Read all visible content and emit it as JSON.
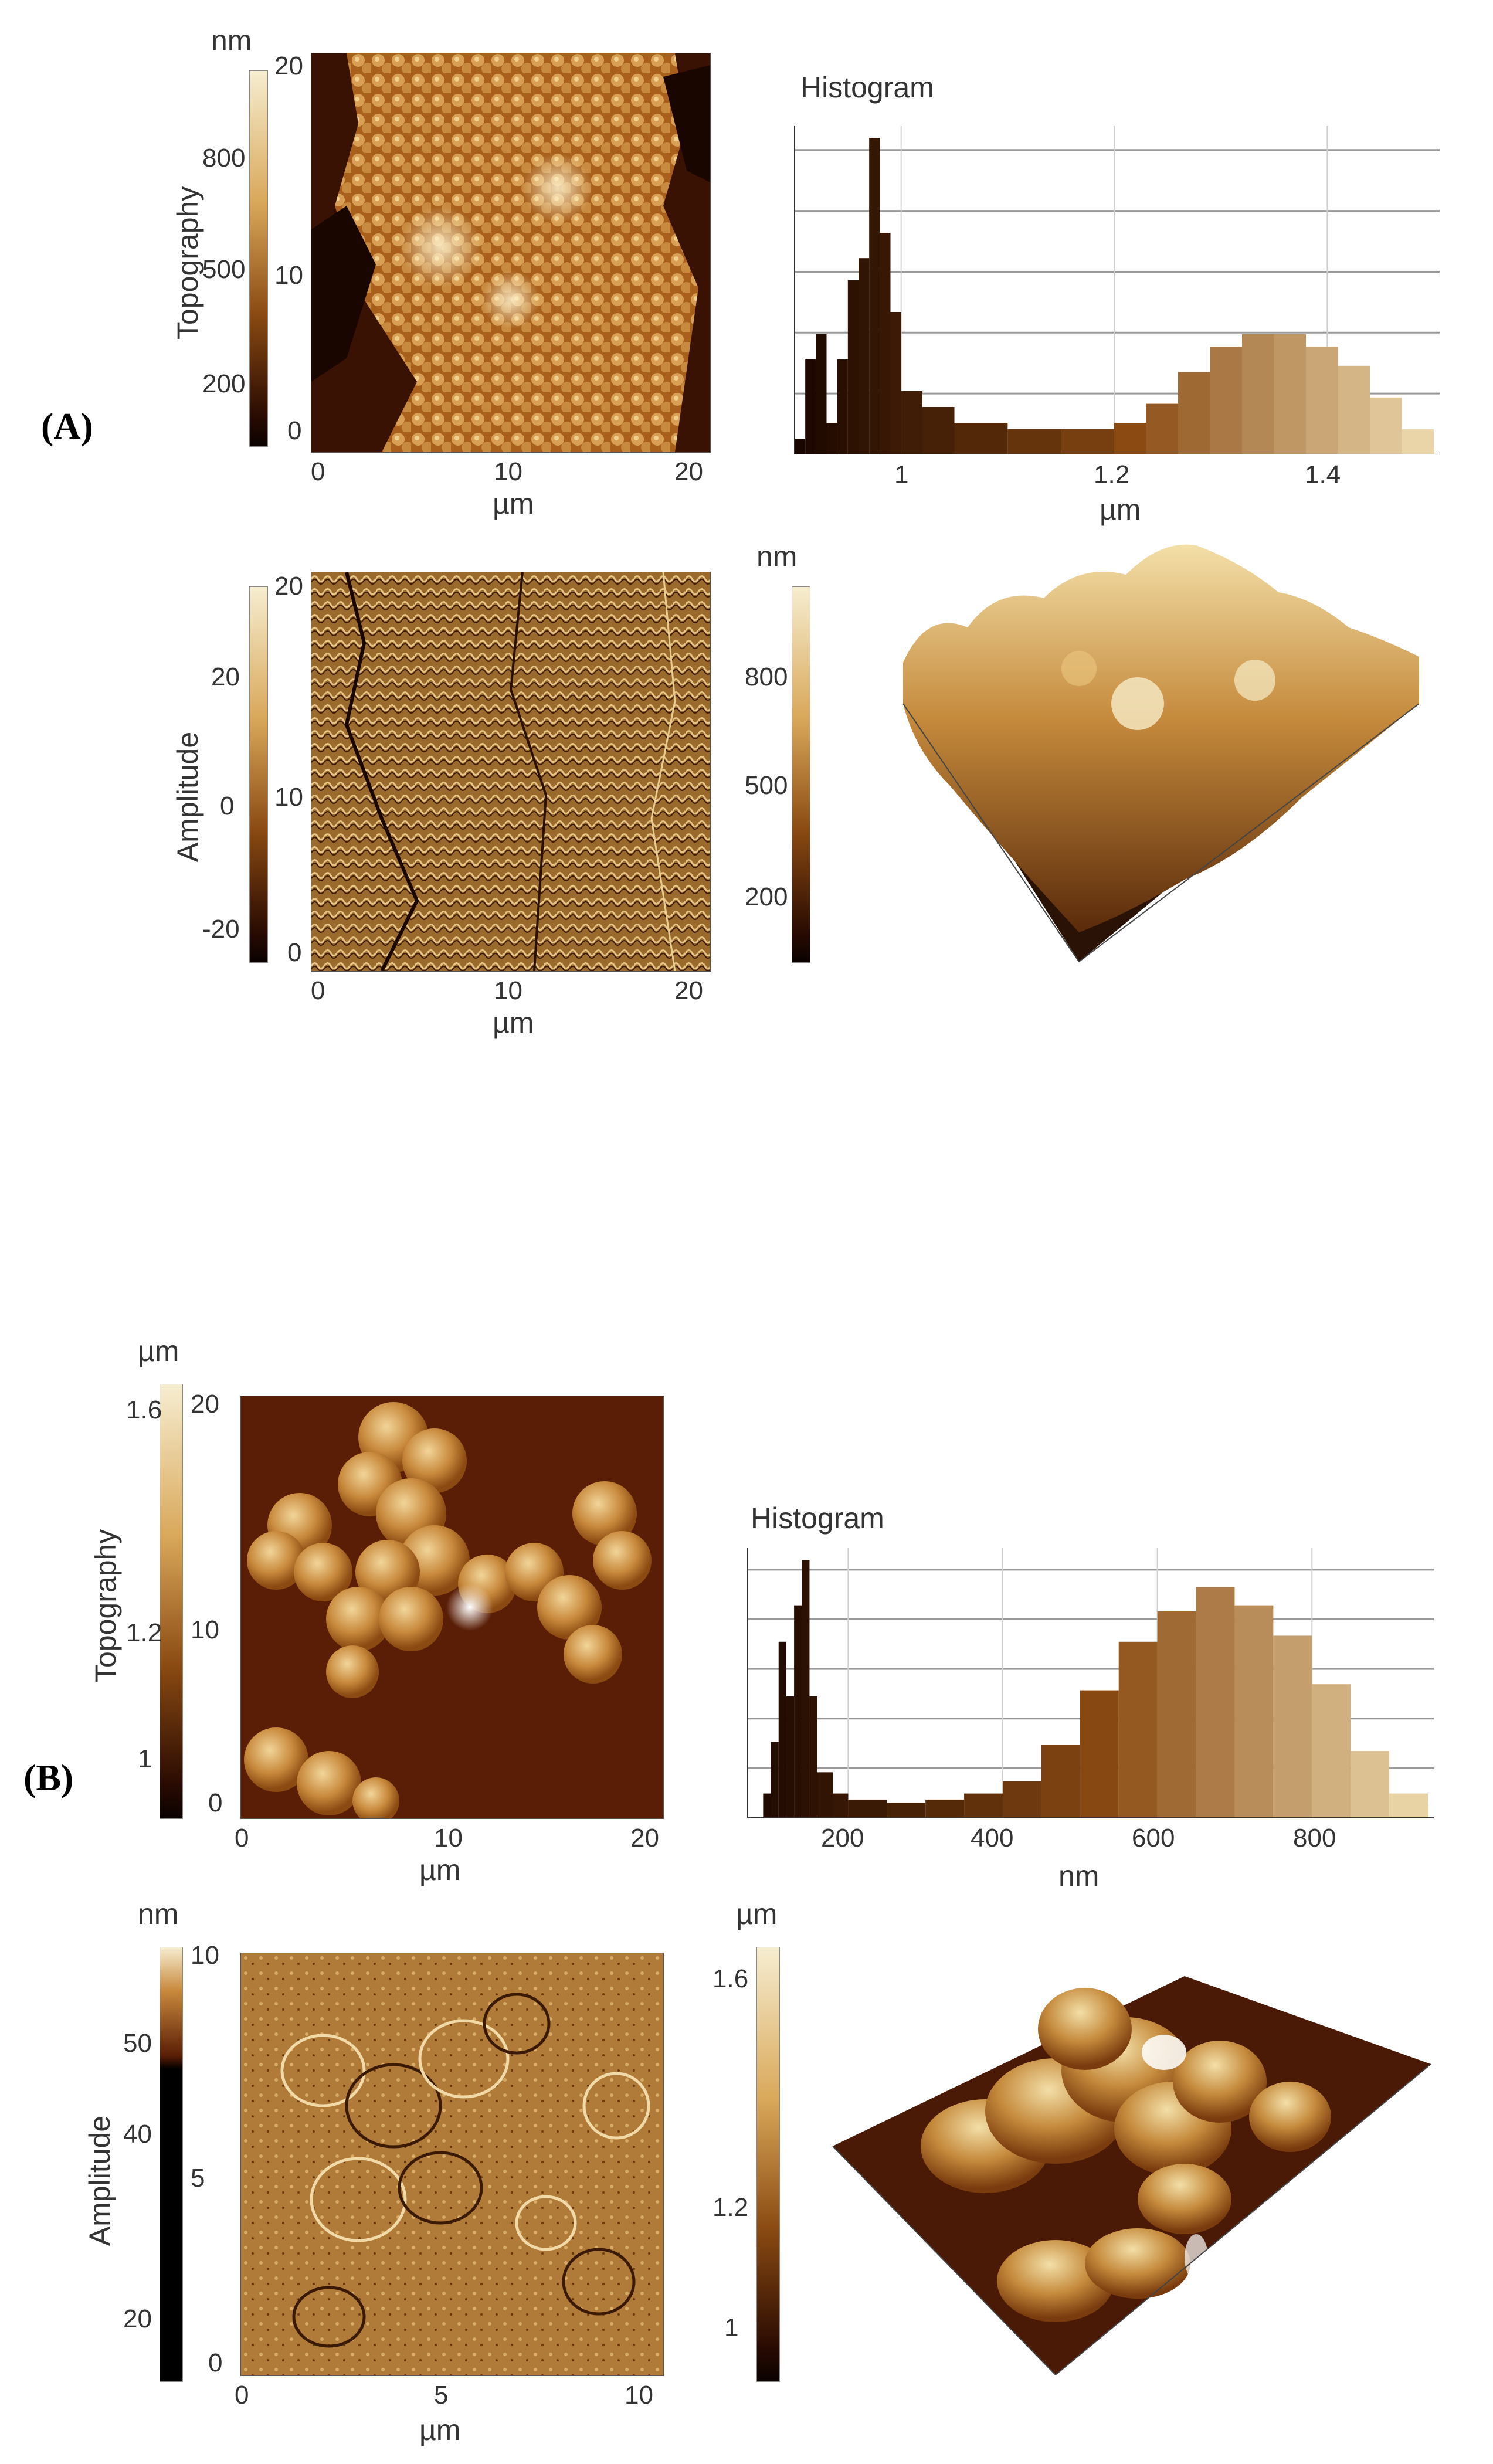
{
  "panel_a": {
    "label": "(A)",
    "topography": {
      "side_title": "Topography",
      "cbar_unit": "nm",
      "cbar_ticks": [
        "800",
        "500",
        "200"
      ],
      "y_ticks": [
        "20",
        "10",
        "0"
      ],
      "x_ticks": [
        "0",
        "10",
        "20"
      ],
      "x_unit": "µm"
    },
    "histogram": {
      "title": "Histogram",
      "x_ticks": [
        "1",
        "1.2",
        "1.4"
      ],
      "x_unit": "µm"
    },
    "amplitude": {
      "side_title": "Amplitude",
      "cbar_ticks": [
        "20",
        "0",
        "-20"
      ],
      "y_ticks": [
        "20",
        "10",
        "0"
      ],
      "x_ticks": [
        "0",
        "10",
        "20"
      ],
      "x_unit": "µm"
    },
    "view3d": {
      "cbar_unit": "nm",
      "cbar_ticks": [
        "800",
        "500",
        "200"
      ]
    }
  },
  "panel_b": {
    "label": "(B)",
    "topography": {
      "side_title": "Topography",
      "cbar_unit": "µm",
      "cbar_ticks": [
        "1.6",
        "1.2",
        "1"
      ],
      "y_ticks": [
        "20",
        "10",
        "0"
      ],
      "x_ticks": [
        "0",
        "10",
        "20"
      ],
      "x_unit": "µm"
    },
    "histogram": {
      "title": "Histogram",
      "x_ticks": [
        "200",
        "400",
        "600",
        "800"
      ],
      "x_unit": "nm"
    },
    "amplitude": {
      "side_title": "Amplitude",
      "cbar_unit": "nm",
      "cbar_ticks": [
        "50",
        "40",
        "20"
      ],
      "y_ticks": [
        "10",
        "5",
        "0"
      ],
      "x_ticks": [
        "0",
        "5",
        "10"
      ],
      "x_unit": "µm"
    },
    "view3d": {
      "cbar_unit": "µm",
      "cbar_ticks": [
        "1.6",
        "1.2",
        "1"
      ]
    }
  },
  "colors": {
    "afm_dark": "#1a0600",
    "afm_mid": "#8a4a12",
    "afm_light": "#f4e4b8",
    "grid": "#9a9a9a"
  },
  "chart_data": [
    {
      "type": "bar",
      "title": "Histogram",
      "xlabel": "µm",
      "ylabel": "",
      "xlim": [
        0.9,
        1.5
      ],
      "x": [
        0.9,
        0.91,
        0.92,
        0.93,
        0.94,
        0.95,
        0.96,
        0.97,
        0.98,
        0.99,
        1.0,
        1.02,
        1.05,
        1.1,
        1.15,
        1.2,
        1.23,
        1.26,
        1.29,
        1.32,
        1.35,
        1.38,
        1.41,
        1.44,
        1.47,
        1.5
      ],
      "values": [
        5,
        30,
        38,
        10,
        30,
        55,
        62,
        100,
        70,
        45,
        20,
        15,
        10,
        8,
        8,
        10,
        16,
        26,
        34,
        38,
        38,
        34,
        28,
        18,
        8,
        2
      ]
    },
    {
      "type": "bar",
      "title": "Histogram",
      "xlabel": "nm",
      "ylabel": "",
      "xlim": [
        70,
        950
      ],
      "x": [
        90,
        100,
        110,
        120,
        130,
        140,
        150,
        160,
        180,
        200,
        250,
        300,
        350,
        400,
        450,
        500,
        550,
        600,
        650,
        700,
        750,
        800,
        850,
        900,
        950
      ],
      "values": [
        8,
        25,
        58,
        40,
        70,
        85,
        40,
        15,
        8,
        6,
        5,
        6,
        8,
        12,
        24,
        42,
        58,
        68,
        76,
        70,
        60,
        44,
        22,
        8,
        4
      ]
    }
  ]
}
